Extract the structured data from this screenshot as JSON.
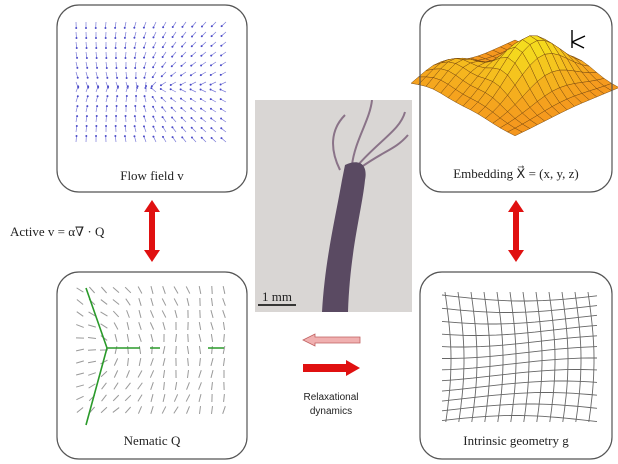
{
  "panels": {
    "flow_field": "Flow field v",
    "embedding": "Embedding X⃗ = (x, y, z)",
    "nematic": "Nematic Q",
    "intrinsic": "Intrinsic geometry g"
  },
  "active_label": "Active v = α∇ · Q",
  "scale_bar": "1 mm",
  "relaxational": [
    "Relaxational",
    "dynamics"
  ]
}
